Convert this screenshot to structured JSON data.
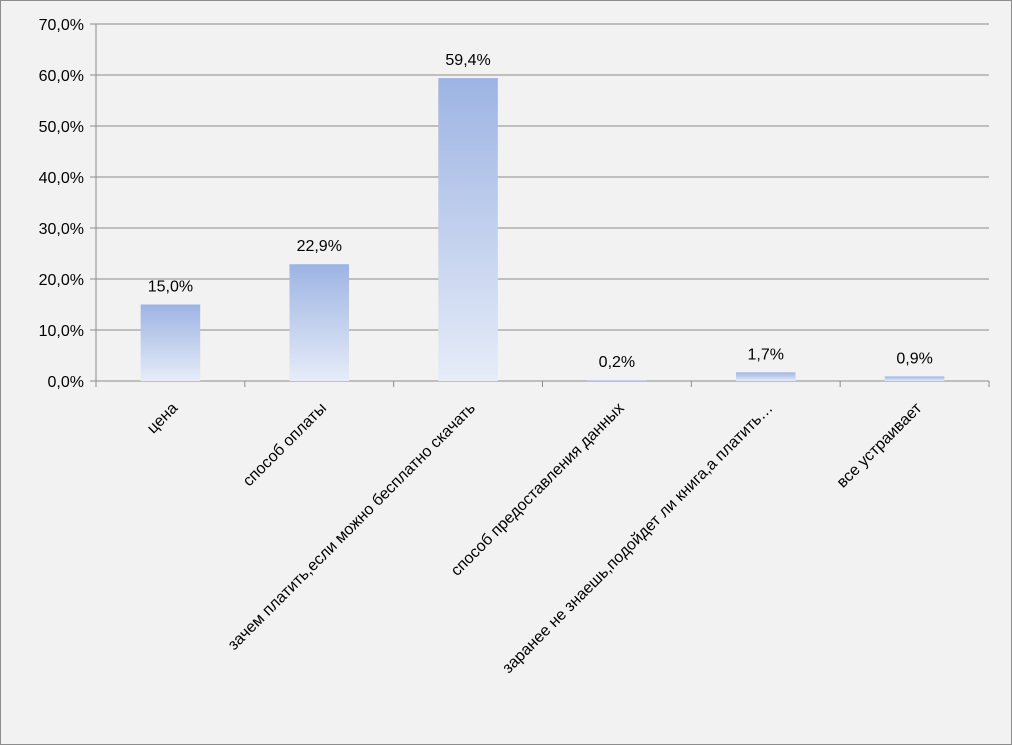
{
  "chart_data": {
    "type": "bar",
    "categories": [
      "цена",
      "способ оплаты",
      "зачем платить,если можно бесплатно скачать",
      "способ предоставления данных",
      "заранее не знаешь,подойдет ли книга,а платить…",
      "все устраивает"
    ],
    "values": [
      15.0,
      22.9,
      59.4,
      0.2,
      1.7,
      0.9
    ],
    "data_labels": [
      "15,0%",
      "22,9%",
      "59,4%",
      "0,2%",
      "1,7%",
      "0,9%"
    ],
    "title": "",
    "xlabel": "",
    "ylabel": "",
    "ylim": [
      0,
      70
    ],
    "yticks": [
      0,
      10,
      20,
      30,
      40,
      50,
      60,
      70
    ],
    "ytick_labels": [
      "0,0%",
      "10,0%",
      "20,0%",
      "30,0%",
      "40,0%",
      "50,0%",
      "60,0%",
      "70,0%"
    ],
    "grid": true,
    "legend": "none",
    "colors": {
      "bar_top": "#9db4e3",
      "bar_bottom": "#e6ecf8",
      "gridline": "#8c8c8c",
      "background": "#f2f2f2"
    }
  }
}
